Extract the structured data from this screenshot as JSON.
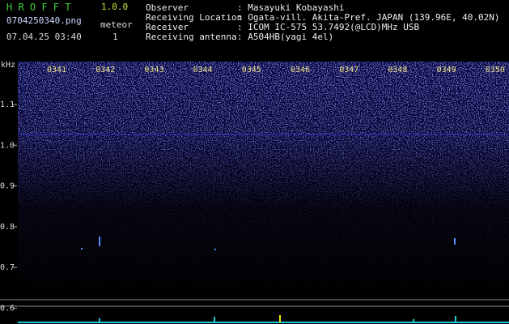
{
  "app": {
    "name": "H R O F F T",
    "version": "1.0.0",
    "file": "0704250340.png",
    "counter_label": "meteor",
    "counter_value": "1",
    "timestamp": "07.04.25 03:40"
  },
  "header": {
    "fields": [
      {
        "label": "Observer",
        "value": ": Masayuki Kobayashi"
      },
      {
        "label": "Receiving Location",
        "value": ": Ogata-vill. Akita-Pref. JAPAN (139.96E, 40.02N)"
      },
      {
        "label": "Receiver",
        "value": ": ICOM IC-575 53.7492(@LCD)MHz USB"
      },
      {
        "label": "Receiving antenna",
        "value": ": A504HB(yagi 4el)"
      }
    ]
  },
  "spectrogram": {
    "unit": "kHz",
    "freq_labels": [
      "1.1",
      "1.0",
      "0.9",
      "0.8",
      "0.7",
      "0.6"
    ],
    "time_labels": [
      "0341",
      "0342",
      "0343",
      "0344",
      "0345",
      "0346",
      "0347",
      "0348",
      "0349",
      "0350"
    ]
  }
}
